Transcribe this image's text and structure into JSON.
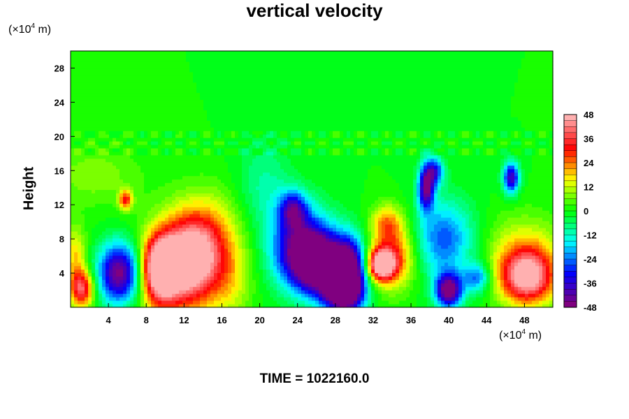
{
  "chart_data": {
    "type": "heatmap",
    "title": "vertical velocity",
    "ylabel": "Height",
    "x_unit_prefix": "(×10",
    "x_unit_exp": "4",
    "x_unit_suffix": " m)",
    "y_unit_prefix": "(×10",
    "y_unit_exp": "4",
    "y_unit_suffix": " m)",
    "xlim": [
      0,
      51
    ],
    "ylim": [
      0,
      30
    ],
    "x_ticks": [
      4,
      8,
      12,
      16,
      20,
      24,
      28,
      32,
      36,
      40,
      44,
      48
    ],
    "y_ticks": [
      4,
      8,
      12,
      16,
      20,
      24,
      28
    ],
    "colorbar": {
      "range": [
        -48,
        48
      ],
      "ticks": [
        48,
        36,
        24,
        12,
        0,
        -12,
        -24,
        -36,
        -48
      ],
      "levels": 32,
      "colormap": [
        "#800080",
        "#0000ff",
        "#00ffff",
        "#00ff00",
        "#ffff00",
        "#ff0000",
        "#ffb0b0"
      ]
    },
    "background_value": 0,
    "features": [
      {
        "x": 1.2,
        "y": 2.2,
        "sx": 0.9,
        "sy": 1.5,
        "value": 38
      },
      {
        "x": 5.2,
        "y": 4.0,
        "sx": 1.6,
        "sy": 2.5,
        "value": -50
      },
      {
        "x": 5.8,
        "y": 12.6,
        "sx": 0.5,
        "sy": 0.8,
        "value": 30
      },
      {
        "x": 9.5,
        "y": 4.5,
        "sx": 1.3,
        "sy": 2.6,
        "value": 50
      },
      {
        "x": 12.5,
        "y": 5.5,
        "sx": 2.2,
        "sy": 3.3,
        "value": 44
      },
      {
        "x": 14.5,
        "y": 8.5,
        "sx": 2.6,
        "sy": 3.6,
        "value": 18
      },
      {
        "x": 11.0,
        "y": 3.0,
        "sx": 3.5,
        "sy": 4.5,
        "value": 14
      },
      {
        "x": 2.5,
        "y": 15.5,
        "sx": 3.5,
        "sy": 2.5,
        "value": 8
      },
      {
        "x": 24.5,
        "y": 7.0,
        "sx": 2.2,
        "sy": 3.2,
        "value": -44
      },
      {
        "x": 26.5,
        "y": 5.0,
        "sx": 2.0,
        "sy": 2.3,
        "value": -48
      },
      {
        "x": 29.5,
        "y": 4.0,
        "sx": 1.3,
        "sy": 2.8,
        "value": -52
      },
      {
        "x": 28.5,
        "y": 1.5,
        "sx": 1.5,
        "sy": 1.5,
        "value": -36
      },
      {
        "x": 23.5,
        "y": 11.5,
        "sx": 1.0,
        "sy": 1.5,
        "value": -30
      },
      {
        "x": 20.5,
        "y": 14.0,
        "sx": 2.0,
        "sy": 4.0,
        "value": -10
      },
      {
        "x": 32.8,
        "y": 5.0,
        "sx": 1.0,
        "sy": 1.2,
        "value": 50
      },
      {
        "x": 34.0,
        "y": 6.0,
        "sx": 1.7,
        "sy": 2.6,
        "value": 30
      },
      {
        "x": 33.5,
        "y": 10.0,
        "sx": 1.2,
        "sy": 1.5,
        "value": 18
      },
      {
        "x": 37.6,
        "y": 14.0,
        "sx": 0.6,
        "sy": 1.8,
        "value": -44
      },
      {
        "x": 38.5,
        "y": 16.0,
        "sx": 0.7,
        "sy": 1.2,
        "value": -30
      },
      {
        "x": 39.5,
        "y": 8.0,
        "sx": 2.2,
        "sy": 3.2,
        "value": -26
      },
      {
        "x": 40.0,
        "y": 2.0,
        "sx": 1.0,
        "sy": 1.4,
        "value": -50
      },
      {
        "x": 43.0,
        "y": 3.5,
        "sx": 1.0,
        "sy": 1.2,
        "value": -24
      },
      {
        "x": 46.6,
        "y": 15.2,
        "sx": 0.6,
        "sy": 1.3,
        "value": -40
      },
      {
        "x": 48.3,
        "y": 3.5,
        "sx": 2.0,
        "sy": 2.2,
        "value": 46
      },
      {
        "x": 48.0,
        "y": 6.5,
        "sx": 2.8,
        "sy": 3.0,
        "value": 16
      },
      {
        "x": 0.5,
        "y": 6.0,
        "sx": 0.8,
        "sy": 2.5,
        "value": 18
      },
      {
        "x": 17.0,
        "y": 3.0,
        "sx": 1.5,
        "sy": 3.0,
        "value": 10
      }
    ]
  },
  "time_text": "TIME = 1022160.0"
}
